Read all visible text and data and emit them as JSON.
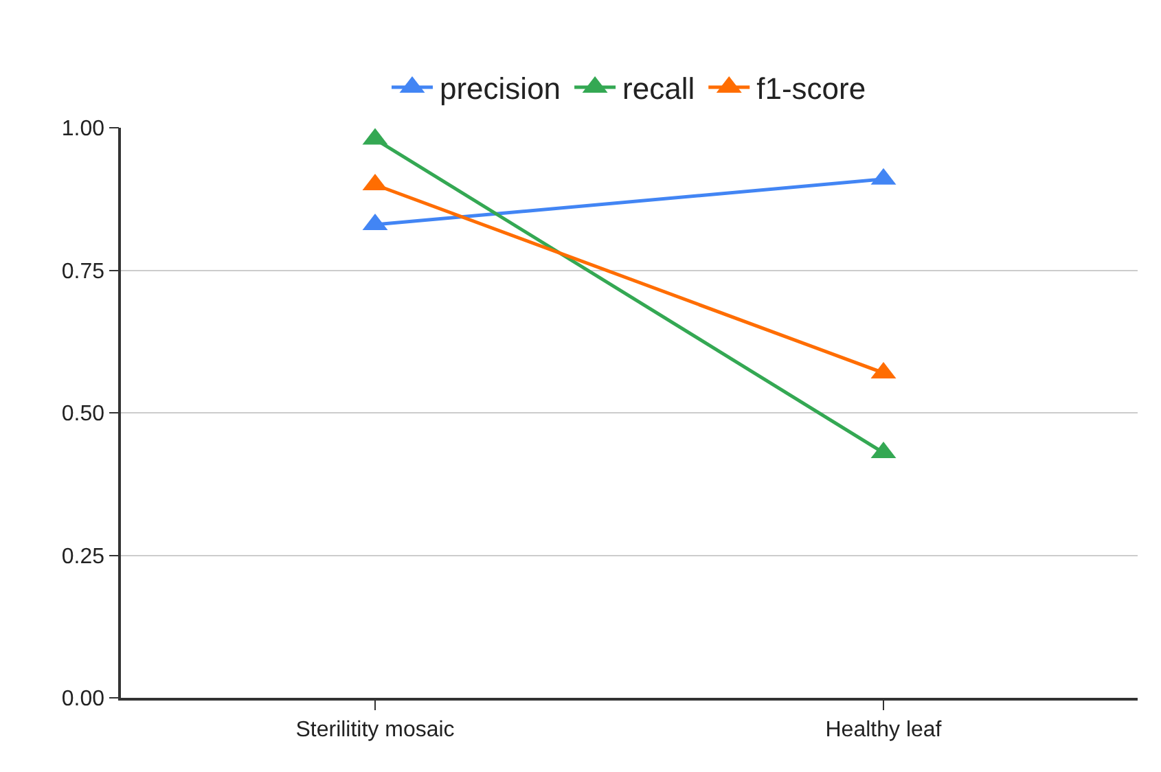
{
  "chart_data": {
    "type": "line",
    "categories": [
      "Sterilitity mosaic",
      "Healthy leaf"
    ],
    "series": [
      {
        "name": "precision",
        "color": "#4285f4",
        "values": [
          0.83,
          0.91
        ]
      },
      {
        "name": "recall",
        "color": "#34a853",
        "values": [
          0.98,
          0.43
        ]
      },
      {
        "name": "f1-score",
        "color": "#ff6d01",
        "values": [
          0.9,
          0.57
        ]
      }
    ],
    "ylim": [
      0,
      1
    ],
    "yticks": [
      {
        "value": 0,
        "label": "0.00"
      },
      {
        "value": 0.25,
        "label": "0.25"
      },
      {
        "value": 0.5,
        "label": "0.50"
      },
      {
        "value": 0.75,
        "label": "0.75"
      },
      {
        "value": 1,
        "label": "1.00"
      }
    ],
    "grid": "y",
    "legend": "top",
    "marker": "triangle",
    "line_style": "solid"
  }
}
